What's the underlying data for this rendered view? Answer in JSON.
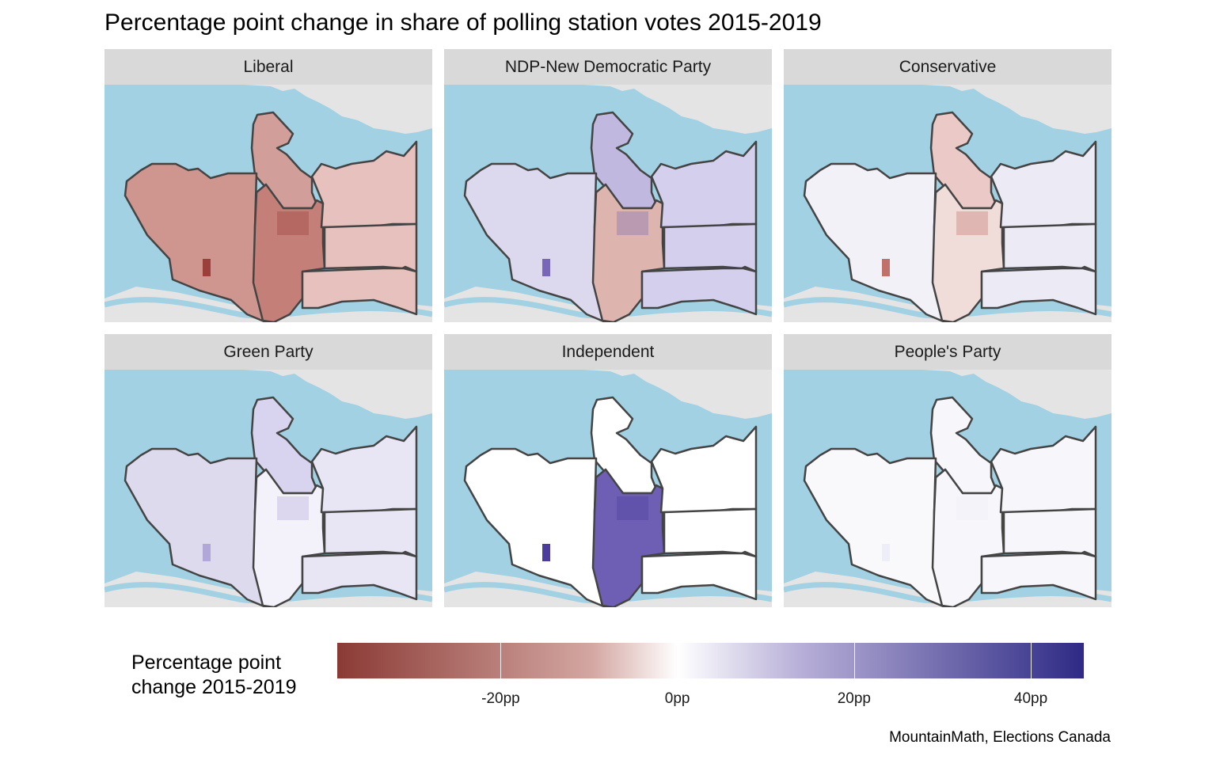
{
  "title": "Percentage point change in share of polling station votes 2015-2019",
  "colors": {
    "water": "#a1d1e2",
    "land": "#e4e4e4",
    "strip": "#d9d9d9",
    "boundary": "#444444",
    "scale_low": "#8b3a35",
    "scale_mid": "#ffffff",
    "scale_high": "#2e2a85"
  },
  "panels": [
    {
      "label": "Liberal",
      "tint": "#d29e99",
      "west": "#cf958f",
      "central": "#c47f78",
      "east": "#e6c1bd",
      "highlight": "#9b3f3a"
    },
    {
      "label": "NDP-New Democratic Party",
      "tint": "#c0b8df",
      "west": "#dcd8ed",
      "central": "#deb5ae",
      "east": "#d4cfec",
      "highlight": "#7867b8"
    },
    {
      "label": "Conservative",
      "tint": "#eac9c6",
      "west": "#f2f1f7",
      "central": "#f0dcd8",
      "east": "#ecebf5",
      "highlight": "#c0716a"
    },
    {
      "label": "Green Party",
      "tint": "#d8d3ee",
      "west": "#dedaee",
      "central": "#f3f2fa",
      "east": "#e8e5f5",
      "highlight": "#b1a7d9"
    },
    {
      "label": "Independent",
      "tint": "#ffffff",
      "west": "#ffffff",
      "central": "#6e5fb5",
      "east": "#ffffff",
      "highlight": "#4a3d9c"
    },
    {
      "label": "People's Party",
      "tint": "#f6f6fb",
      "west": "#f9f9fc",
      "central": "#f6f6fb",
      "east": "#f7f7fb",
      "highlight": "#eeeef7"
    }
  ],
  "legend": {
    "title_line1": "Percentage point",
    "title_line2": "change 2015-2019",
    "range": [
      -38.5,
      46
    ],
    "ticks": [
      {
        "value": -20,
        "label": "-20pp"
      },
      {
        "value": 0,
        "label": "0pp"
      },
      {
        "value": 20,
        "label": "20pp"
      },
      {
        "value": 40,
        "label": "40pp"
      }
    ]
  },
  "caption": "MountainMath, Elections Canada"
}
